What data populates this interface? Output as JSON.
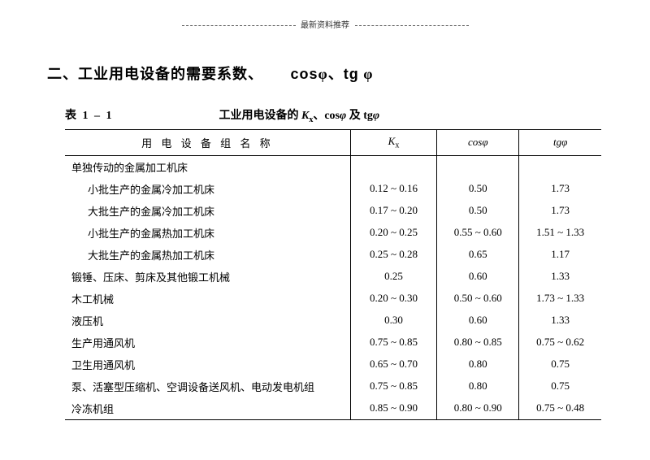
{
  "header_center": "最新资料推荐",
  "section_title_prefix": "二、工业用电设备的需要系数、",
  "section_title_cos": "cos",
  "section_title_phi1": "φ、",
  "section_title_tg": "tg",
  "section_title_phi2": " φ",
  "table_label": "表 1 – 1",
  "table_caption_prefix": "工业用电设备的 ",
  "table_caption_Kx": "K",
  "table_caption_Kx_sub": "x",
  "table_caption_mid": "、cos",
  "table_caption_phi1": "φ",
  "table_caption_mid2": " 及 tg",
  "table_caption_phi2": "φ",
  "columns": {
    "name": "用 电 设 备 组 名 称",
    "kx_K": "K",
    "kx_sub": "x",
    "cos": "cosφ",
    "tg": "tgφ"
  },
  "rows": [
    {
      "name": "单独传动的金属加工机床",
      "indent": false,
      "kx": "",
      "cos": "",
      "tg": ""
    },
    {
      "name": "小批生产的金属冷加工机床",
      "indent": true,
      "kx": "0.12 ~ 0.16",
      "cos": "0.50",
      "tg": "1.73"
    },
    {
      "name": "大批生产的金属冷加工机床",
      "indent": true,
      "kx": "0.17 ~ 0.20",
      "cos": "0.50",
      "tg": "1.73"
    },
    {
      "name": "小批生产的金属热加工机床",
      "indent": true,
      "kx": "0.20 ~ 0.25",
      "cos": "0.55 ~ 0.60",
      "tg": "1.51 ~ 1.33"
    },
    {
      "name": "大批生产的金属热加工机床",
      "indent": true,
      "kx": "0.25 ~ 0.28",
      "cos": "0.65",
      "tg": "1.17"
    },
    {
      "name": "锻锤、压床、剪床及其他锻工机械",
      "indent": false,
      "kx": "0.25",
      "cos": "0.60",
      "tg": "1.33"
    },
    {
      "name": "木工机械",
      "indent": false,
      "kx": "0.20 ~ 0.30",
      "cos": "0.50 ~ 0.60",
      "tg": "1.73 ~ 1.33"
    },
    {
      "name": "液压机",
      "indent": false,
      "kx": "0.30",
      "cos": "0.60",
      "tg": "1.33"
    },
    {
      "name": "生产用通风机",
      "indent": false,
      "kx": "0.75 ~ 0.85",
      "cos": "0.80 ~ 0.85",
      "tg": "0.75 ~ 0.62"
    },
    {
      "name": "卫生用通风机",
      "indent": false,
      "kx": "0.65 ~ 0.70",
      "cos": "0.80",
      "tg": "0.75"
    },
    {
      "name": "泵、活塞型压缩机、空调设备送风机、电动发电机组",
      "indent": false,
      "kx": "0.75 ~ 0.85",
      "cos": "0.80",
      "tg": "0.75"
    },
    {
      "name": "冷冻机组",
      "indent": false,
      "kx": "0.85 ~ 0.90",
      "cos": "0.80 ~ 0.90",
      "tg": "0.75 ~ 0.48"
    }
  ]
}
